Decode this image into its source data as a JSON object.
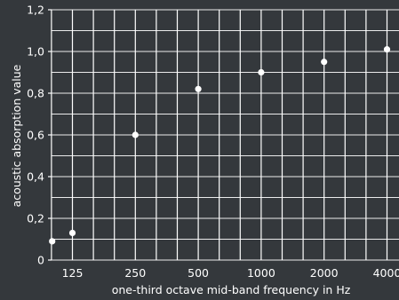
{
  "chart_data": {
    "type": "scatter",
    "title": "",
    "xlabel": "one-third octave mid-band frequency in Hz",
    "ylabel": "acoustic absorption value",
    "x_major_ticks": [
      "125",
      "250",
      "500",
      "1000",
      "2000",
      "4000"
    ],
    "x_scale": "one-third octave bands (log frequency)",
    "y_ticks": [
      "0",
      "0,2",
      "0,4",
      "0,6",
      "0,8",
      "1,0",
      "1,2"
    ],
    "ylim": [
      0,
      1.2
    ],
    "grid": true,
    "legend": "none",
    "colors": {
      "background": "#34383c",
      "grid": "#ffffff",
      "points": "#ffffff",
      "text": "#ffffff"
    },
    "series": [
      {
        "points": [
          {
            "x": 100,
            "y": 0.09
          },
          {
            "x": 125,
            "y": 0.13
          },
          {
            "x": 250,
            "y": 0.6
          },
          {
            "x": 500,
            "y": 0.82
          },
          {
            "x": 1000,
            "y": 0.9
          },
          {
            "x": 2000,
            "y": 0.95
          },
          {
            "x": 4000,
            "y": 1.01
          }
        ]
      }
    ]
  }
}
